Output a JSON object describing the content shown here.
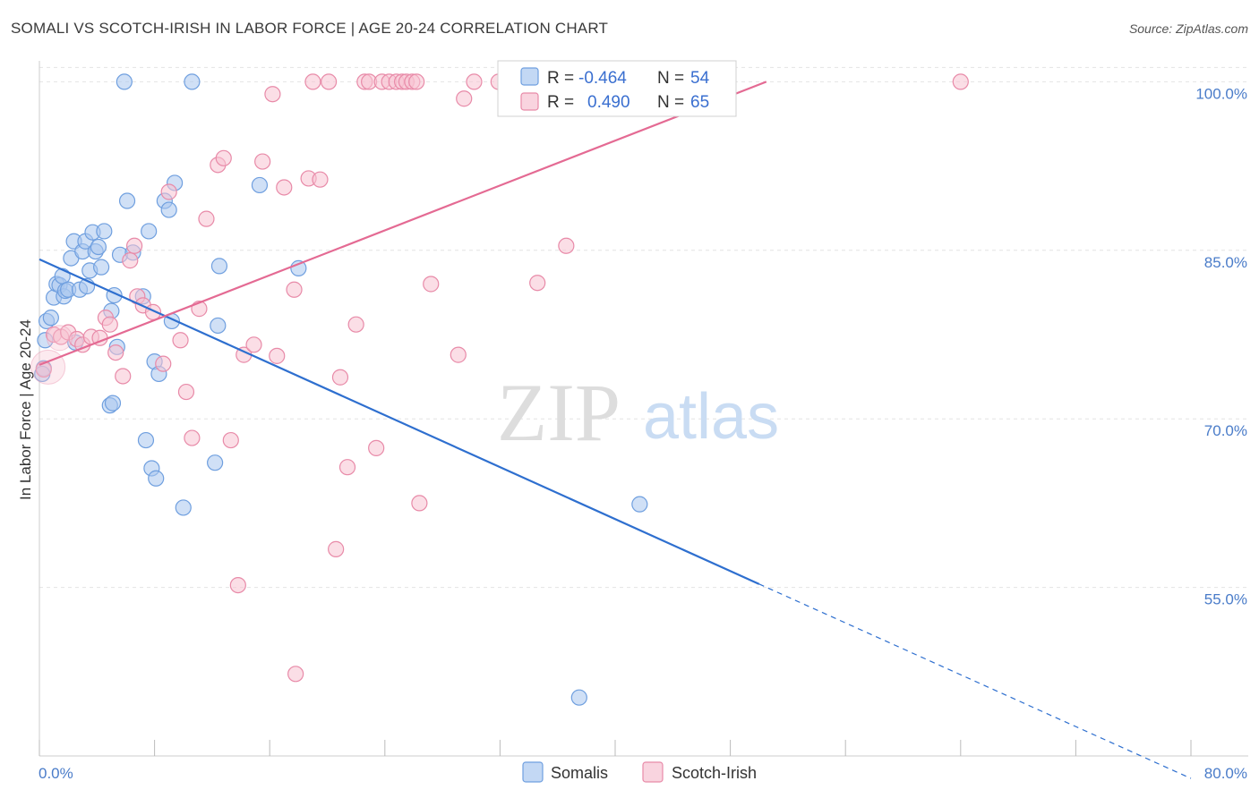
{
  "title": "SOMALI VS SCOTCH-IRISH IN LABOR FORCE | AGE 20-24 CORRELATION CHART",
  "source": "Source: ZipAtlas.com",
  "watermark": {
    "zip": "ZIP",
    "atlas": "atlas"
  },
  "chart_data": {
    "type": "scatter",
    "xlabel": "",
    "ylabel": "In Labor Force | Age 20-24",
    "xlim": [
      0,
      80
    ],
    "ylim": [
      40,
      102.5
    ],
    "x_tick_labels": [
      {
        "value": 0,
        "label": "0.0%"
      },
      {
        "value": 80,
        "label": "80.0%"
      }
    ],
    "y_ticks": [
      {
        "value": 55,
        "label": "55.0%"
      },
      {
        "value": 70,
        "label": "70.0%"
      },
      {
        "value": 85,
        "label": "85.0%"
      },
      {
        "value": 100,
        "label": "100.0%"
      }
    ],
    "grid": true,
    "legend": {
      "position": "top-center",
      "rows": [
        {
          "series": "Somalis",
          "r_label": "R =",
          "r_value": "-0.464",
          "n_label": "N =",
          "n_value": "54"
        },
        {
          "series": "Scotch-Irish",
          "r_label": "R =",
          "r_value": "0.490",
          "n_label": "N =",
          "n_value": "65"
        }
      ]
    },
    "series": [
      {
        "name": "Somalis",
        "color": "#6f9fdf",
        "fill": "#aac7ef",
        "trend": {
          "x0": 0,
          "y0": 84.2,
          "x1": 50,
          "y1": 55.3,
          "dash_to_x": 80,
          "dash_to_y": 38.0,
          "color": "#2e6fcf"
        },
        "points": [
          [
            0.3,
            74.5
          ],
          [
            0.4,
            77.0
          ],
          [
            0.5,
            78.7
          ],
          [
            0.8,
            79.0
          ],
          [
            1.0,
            80.8
          ],
          [
            1.2,
            82.0
          ],
          [
            1.4,
            81.9
          ],
          [
            1.6,
            82.7
          ],
          [
            1.7,
            80.9
          ],
          [
            1.8,
            81.4
          ],
          [
            2.0,
            81.5
          ],
          [
            2.2,
            84.3
          ],
          [
            2.4,
            85.8
          ],
          [
            2.5,
            76.8
          ],
          [
            2.8,
            81.5
          ],
          [
            3.0,
            84.9
          ],
          [
            3.2,
            85.8
          ],
          [
            3.3,
            81.8
          ],
          [
            3.5,
            83.2
          ],
          [
            3.7,
            86.6
          ],
          [
            3.9,
            84.9
          ],
          [
            4.1,
            85.3
          ],
          [
            4.3,
            83.5
          ],
          [
            4.5,
            86.7
          ],
          [
            4.9,
            71.2
          ],
          [
            5.0,
            79.6
          ],
          [
            5.1,
            71.4
          ],
          [
            5.2,
            81.0
          ],
          [
            5.4,
            76.4
          ],
          [
            5.6,
            84.6
          ],
          [
            5.9,
            100.0
          ],
          [
            6.1,
            89.4
          ],
          [
            6.5,
            84.8
          ],
          [
            7.2,
            80.9
          ],
          [
            7.4,
            68.1
          ],
          [
            7.6,
            86.7
          ],
          [
            7.8,
            65.6
          ],
          [
            8.0,
            75.1
          ],
          [
            8.1,
            64.7
          ],
          [
            8.3,
            74.0
          ],
          [
            8.7,
            89.4
          ],
          [
            9.0,
            88.6
          ],
          [
            9.2,
            78.7
          ],
          [
            9.4,
            91.0
          ],
          [
            10.0,
            62.1
          ],
          [
            10.6,
            100.0
          ],
          [
            12.2,
            66.1
          ],
          [
            12.4,
            78.3
          ],
          [
            12.5,
            83.6
          ],
          [
            15.3,
            90.8
          ],
          [
            18.0,
            83.4
          ],
          [
            37.5,
            45.2
          ],
          [
            41.7,
            62.4
          ],
          [
            0.2,
            74.0
          ]
        ]
      },
      {
        "name": "Scotch-Irish",
        "color": "#e88aa8",
        "fill": "#f7c2d2",
        "trend": {
          "x0": 0,
          "y0": 74.8,
          "x1": 50.5,
          "y1": 100.0,
          "color": "#e46a93"
        },
        "points": [
          [
            0.3,
            74.4
          ],
          [
            1.0,
            77.5
          ],
          [
            1.5,
            77.3
          ],
          [
            2.0,
            77.7
          ],
          [
            2.6,
            77.1
          ],
          [
            3.0,
            76.6
          ],
          [
            3.6,
            77.3
          ],
          [
            4.2,
            77.2
          ],
          [
            4.6,
            79.0
          ],
          [
            4.9,
            78.4
          ],
          [
            5.3,
            75.9
          ],
          [
            5.8,
            73.8
          ],
          [
            6.3,
            84.1
          ],
          [
            6.6,
            85.4
          ],
          [
            6.8,
            80.9
          ],
          [
            7.2,
            80.1
          ],
          [
            7.9,
            79.5
          ],
          [
            8.6,
            74.9
          ],
          [
            9.0,
            90.2
          ],
          [
            9.8,
            77.0
          ],
          [
            10.2,
            72.4
          ],
          [
            10.6,
            68.3
          ],
          [
            11.1,
            79.8
          ],
          [
            11.6,
            87.8
          ],
          [
            12.4,
            92.6
          ],
          [
            12.8,
            93.2
          ],
          [
            13.3,
            68.1
          ],
          [
            13.8,
            55.2
          ],
          [
            14.2,
            75.7
          ],
          [
            14.9,
            76.6
          ],
          [
            15.5,
            92.9
          ],
          [
            16.2,
            98.9
          ],
          [
            16.5,
            75.6
          ],
          [
            17.0,
            90.6
          ],
          [
            17.7,
            81.5
          ],
          [
            17.8,
            47.3
          ],
          [
            18.7,
            91.4
          ],
          [
            19.0,
            100.0
          ],
          [
            19.5,
            91.3
          ],
          [
            20.1,
            100.0
          ],
          [
            20.6,
            58.4
          ],
          [
            20.9,
            73.7
          ],
          [
            21.4,
            65.7
          ],
          [
            22.0,
            78.4
          ],
          [
            22.6,
            100.0
          ],
          [
            22.9,
            100.0
          ],
          [
            23.4,
            67.4
          ],
          [
            23.8,
            100.0
          ],
          [
            24.3,
            100.0
          ],
          [
            24.8,
            100.0
          ],
          [
            25.2,
            100.0
          ],
          [
            25.5,
            100.0
          ],
          [
            25.9,
            100.0
          ],
          [
            26.2,
            100.0
          ],
          [
            26.4,
            62.5
          ],
          [
            27.2,
            82.0
          ],
          [
            29.1,
            75.7
          ],
          [
            29.5,
            98.5
          ],
          [
            30.2,
            100.0
          ],
          [
            31.9,
            100.0
          ],
          [
            34.6,
            82.1
          ],
          [
            36.6,
            85.4
          ],
          [
            37.1,
            100.0
          ],
          [
            43.8,
            100.0
          ],
          [
            64.0,
            100.0
          ]
        ]
      }
    ]
  }
}
